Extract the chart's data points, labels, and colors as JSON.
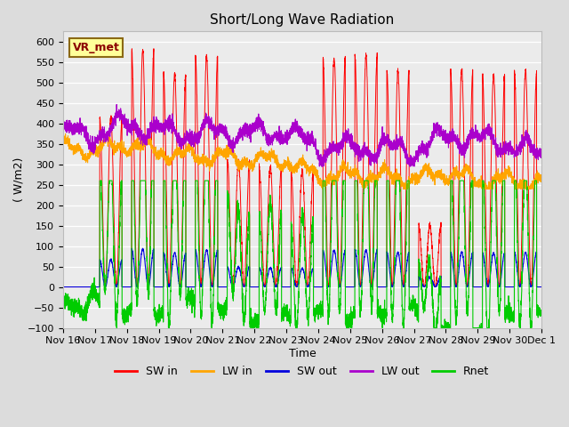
{
  "title": "Short/Long Wave Radiation",
  "xlabel": "Time",
  "ylabel": "( W/m2)",
  "ylim": [
    -100,
    625
  ],
  "colors": {
    "SW_in": "#ff0000",
    "LW_in": "#ffa500",
    "SW_out": "#0000dd",
    "LW_out": "#aa00cc",
    "Rnet": "#00cc00"
  },
  "annotation_text": "VR_met",
  "bg_color": "#dcdcdc",
  "plot_bg_color": "#ebebeb"
}
